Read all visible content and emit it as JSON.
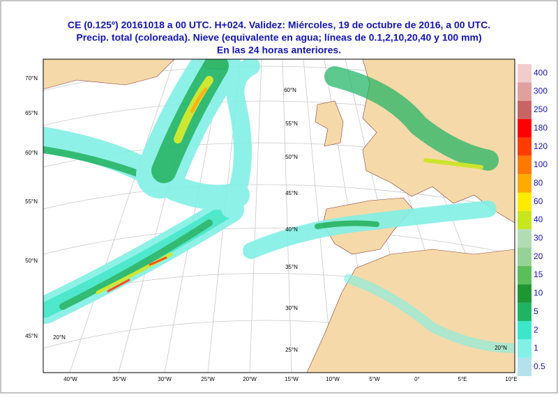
{
  "header": {
    "title_lines": [
      "CE (0.125º) 20161018 a 00 UTC.  H+024. Validez: Miércoles, 19 de octubre de 2016,  a  00 UTC.",
      "Precip. total (coloreada). Nieve (equivalente en agua; líneas de 0.1,2,10,20,40 y 100 mm)",
      "En las 24 horas anteriores."
    ]
  },
  "legend": [
    {
      "label": "400",
      "color": "#f2cccc"
    },
    {
      "label": "300",
      "color": "#e0a0a0"
    },
    {
      "label": "250",
      "color": "#c86464"
    },
    {
      "label": "180",
      "color": "#ff0000"
    },
    {
      "label": "120",
      "color": "#ff3c00"
    },
    {
      "label": "100",
      "color": "#ff7800"
    },
    {
      "label": "80",
      "color": "#ffaa00"
    },
    {
      "label": "60",
      "color": "#ffeb00"
    },
    {
      "label": "40",
      "color": "#c8e61e"
    },
    {
      "label": "30",
      "color": "#b4dcb4"
    },
    {
      "label": "20",
      "color": "#96d296"
    },
    {
      "label": "15",
      "color": "#5abe5a"
    },
    {
      "label": "10",
      "color": "#1e9632"
    },
    {
      "label": "5",
      "color": "#1eb464"
    },
    {
      "label": "2",
      "color": "#3ce6c8"
    },
    {
      "label": "1",
      "color": "#82f0e6"
    },
    {
      "label": "0.5",
      "color": "#b4e1eb"
    }
  ],
  "lat_labels": [
    "70°N",
    "65°N",
    "60°N",
    "55°N",
    "50°N",
    "45°N"
  ],
  "lon_labels": [
    "40°W",
    "35°W",
    "30°W",
    "25°W",
    "20°W",
    "15°W",
    "10°W",
    "5°W",
    "0°",
    "5°E",
    "10°E"
  ],
  "grid_labels": [
    "60°N",
    "55°N",
    "50°N",
    "45°N",
    "40°N",
    "35°N",
    "30°N",
    "25°N",
    "20°N",
    "20°N"
  ]
}
